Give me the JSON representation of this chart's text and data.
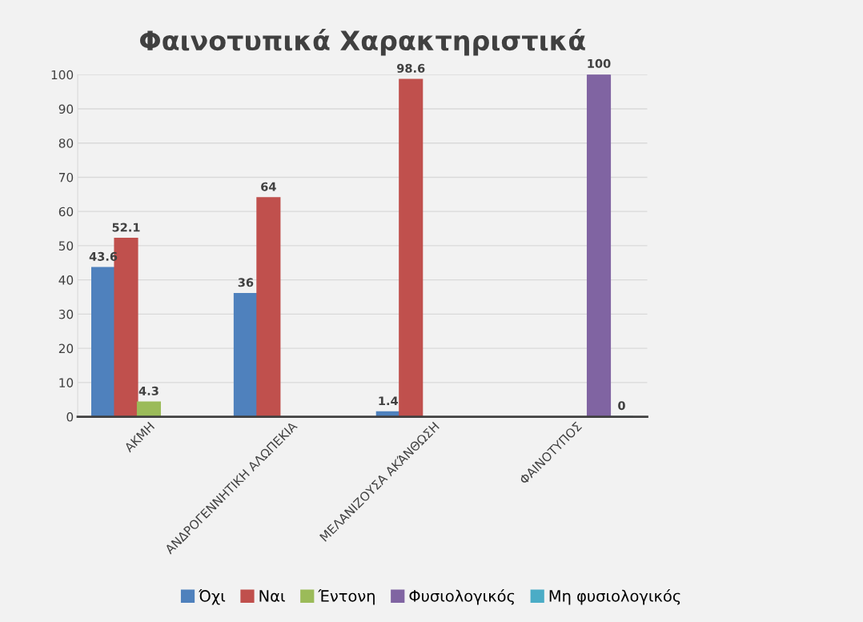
{
  "chart_data": {
    "type": "bar",
    "title": "Φαινοτυπικά Χαρακτηριστικά",
    "categories": [
      "ΑΚΜΗ",
      "ΑΝΔΡΟΓΕΝΝΗΤΙΚΗ ΑΛΩΠΕΚΙΑ",
      "ΜΕΛΑΝΙΖΟΥΣΑ ΑΚΆΝΘΩΣΗ",
      "ΦΑΙΝΟΤΥΠΟΣ"
    ],
    "series": [
      {
        "name": "Όχι",
        "color": "#4f81bd",
        "values": [
          43.6,
          36,
          1.4,
          null
        ]
      },
      {
        "name": "Ναι",
        "color": "#c0504d",
        "values": [
          52.1,
          64,
          98.6,
          null
        ]
      },
      {
        "name": "Έντονη",
        "color": "#9bbb59",
        "values": [
          4.3,
          null,
          null,
          null
        ]
      },
      {
        "name": "Φυσιολογικός",
        "color": "#8064a2",
        "values": [
          null,
          null,
          null,
          100
        ]
      },
      {
        "name": "Μη φυσιολογικός",
        "color": "#4bacc6",
        "values": [
          null,
          null,
          null,
          0
        ]
      }
    ],
    "ylim": [
      0,
      100
    ],
    "yticks": [
      0,
      10,
      20,
      30,
      40,
      50,
      60,
      70,
      80,
      90,
      100
    ],
    "grid": "y",
    "legend": "bottom",
    "data_labels": true
  }
}
